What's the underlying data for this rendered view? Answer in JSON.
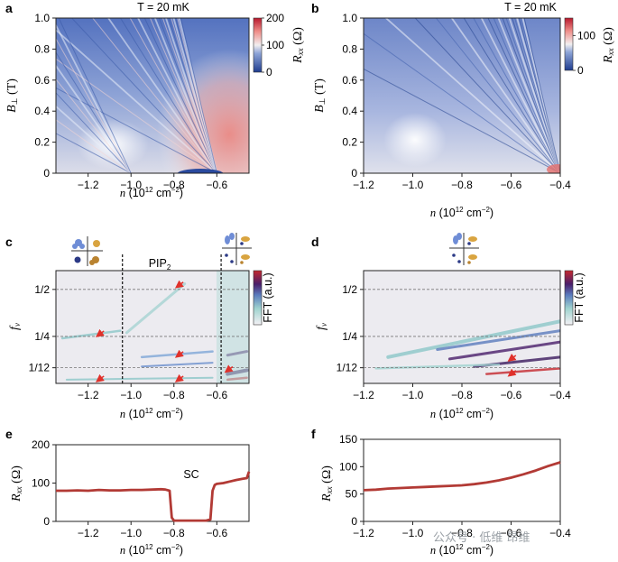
{
  "chart_data": [
    {
      "id": "a",
      "type": "heatmap",
      "title": "T = 20 mK",
      "xlabel": "n (10^12 cm^-2)",
      "ylabel": "B⊥ (T)",
      "xlim": [
        -1.35,
        -0.45
      ],
      "ylim": [
        0,
        1.0
      ],
      "xticks": [
        -1.2,
        -1.0,
        -0.8,
        -0.6
      ],
      "yticks": [
        0,
        0.2,
        0.4,
        0.6,
        0.8,
        1.0
      ],
      "colorbar": {
        "label": "Rxx (Ω)",
        "ticks": [
          0,
          100,
          200
        ],
        "range": [
          0,
          200
        ]
      },
      "fan_origins": [
        -0.6,
        -1.0
      ]
    },
    {
      "id": "b",
      "type": "heatmap",
      "title": "T = 20 mK",
      "xlabel": "n (10^12 cm^-2)",
      "ylabel": "B⊥ (T)",
      "xlim": [
        -1.2,
        -0.4
      ],
      "ylim": [
        0,
        1.0
      ],
      "xticks": [
        -1.2,
        -1.0,
        -0.8,
        -0.6,
        -0.4
      ],
      "yticks": [
        0,
        0.2,
        0.4,
        0.6,
        0.8,
        1.0
      ],
      "colorbar": {
        "label": "Rxx (Ω)",
        "ticks": [
          0,
          100
        ],
        "range": [
          0,
          150
        ]
      },
      "fan_origins": [
        -0.4
      ]
    },
    {
      "id": "c",
      "type": "heatmap",
      "xlabel": "n (10^12 cm^-2)",
      "ylabel": "fν",
      "xlim": [
        -1.35,
        -0.45
      ],
      "ylim": [
        0,
        0.6
      ],
      "xticks": [
        -1.2,
        -1.0,
        -0.8,
        -0.6
      ],
      "yticks": [
        {
          "v": 0.0833,
          "label": "1/12"
        },
        {
          "v": 0.25,
          "label": "1/4"
        },
        {
          "v": 0.5,
          "label": "1/2"
        }
      ],
      "colorbar": {
        "label": "FFT (a.u.)"
      },
      "region_boundaries": [
        -1.04,
        -0.58
      ],
      "region_label": "PIP2",
      "arrows": [
        {
          "n": -1.16,
          "f": 0.25
        },
        {
          "n": -1.16,
          "f": 0.01
        },
        {
          "n": -0.79,
          "f": 0.51
        },
        {
          "n": -0.79,
          "f": 0.14
        },
        {
          "n": -0.79,
          "f": 0.01
        },
        {
          "n": -0.56,
          "f": 0.06
        }
      ]
    },
    {
      "id": "d",
      "type": "heatmap",
      "xlabel": "n (10^12 cm^-2)",
      "ylabel": "fν",
      "xlim": [
        -1.2,
        -0.4
      ],
      "ylim": [
        0,
        0.6
      ],
      "xticks": [
        -1.2,
        -1.0,
        -0.8,
        -0.6,
        -0.4
      ],
      "yticks": [
        {
          "v": 0.0833,
          "label": "1/12"
        },
        {
          "v": 0.25,
          "label": "1/4"
        },
        {
          "v": 0.5,
          "label": "1/2"
        }
      ],
      "colorbar": {
        "label": "FFT (a.u.)"
      },
      "arrows": [
        {
          "n": -0.61,
          "f": 0.12
        },
        {
          "n": -0.61,
          "f": 0.04
        }
      ]
    },
    {
      "id": "e",
      "type": "line",
      "xlabel": "n (10^12 cm^-2)",
      "ylabel": "Rxx (Ω)",
      "xlim": [
        -1.35,
        -0.45
      ],
      "ylim": [
        0,
        200
      ],
      "xticks": [
        -1.2,
        -1.0,
        -0.8,
        -0.6
      ],
      "yticks": [
        0,
        100,
        200
      ],
      "annotation": "SC",
      "series": [
        {
          "name": "Rxx",
          "color": "#b23a35",
          "x": [
            -1.35,
            -1.3,
            -1.25,
            -1.2,
            -1.15,
            -1.1,
            -1.05,
            -1.0,
            -0.95,
            -0.9,
            -0.86,
            -0.84,
            -0.82,
            -0.81,
            -0.8,
            -0.75,
            -0.7,
            -0.65,
            -0.63,
            -0.62,
            -0.61,
            -0.6,
            -0.57,
            -0.54,
            -0.51,
            -0.48,
            -0.46,
            -0.45
          ],
          "y": [
            80,
            80,
            81,
            80,
            82,
            81,
            81,
            82,
            82,
            83,
            84,
            83,
            80,
            10,
            2,
            2,
            2,
            2,
            5,
            80,
            95,
            98,
            100,
            104,
            108,
            111,
            113,
            130
          ]
        }
      ]
    },
    {
      "id": "f",
      "type": "line",
      "xlabel": "n (10^12 cm^-2)",
      "ylabel": "Rxx (Ω)",
      "xlim": [
        -1.2,
        -0.4
      ],
      "ylim": [
        0,
        150
      ],
      "xticks": [
        -1.2,
        -1.0,
        -0.8,
        -0.6,
        -0.4
      ],
      "yticks": [
        0,
        50,
        100,
        150
      ],
      "series": [
        {
          "name": "Rxx",
          "color": "#b23a35",
          "x": [
            -1.2,
            -1.15,
            -1.1,
            -1.05,
            -1.0,
            -0.95,
            -0.9,
            -0.85,
            -0.8,
            -0.75,
            -0.7,
            -0.65,
            -0.6,
            -0.55,
            -0.5,
            -0.45,
            -0.4
          ],
          "y": [
            57,
            58,
            60,
            61,
            62,
            63,
            64,
            65,
            66,
            68,
            71,
            75,
            80,
            86,
            93,
            101,
            108
          ]
        }
      ]
    }
  ],
  "labels": {
    "temp_a": "T = 20 mK",
    "temp_b": "T = 20 mK",
    "pip2": "PIP",
    "pip2_sub": "2",
    "sc": "SC",
    "watermark": "公众号 · 低维 昂维"
  },
  "colors": {
    "red_line": "#b23a35",
    "blue": "#2b4c9a",
    "arrow": "#e0312b"
  }
}
